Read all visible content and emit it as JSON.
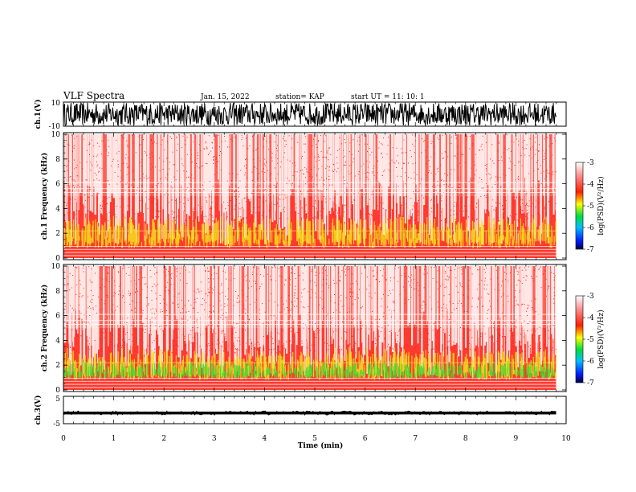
{
  "header": {
    "title": "VLF Spectra",
    "date": "Jan. 15, 2022",
    "station": "station= KAP",
    "start": "start  UT  =   11: 10: 1"
  },
  "chart_data": [
    {
      "type": "line",
      "panel": "ch1-waveform",
      "ylabel": "ch.1(V)",
      "ylim": [
        -10,
        10
      ],
      "ytick_labels": [
        "10",
        "-10"
      ],
      "xlim": [
        0,
        10
      ]
    },
    {
      "type": "heatmap",
      "panel": "ch1-spectrogram",
      "ylabel": "ch.1 Frequency (kHz)",
      "ylim": [
        0,
        10
      ],
      "xlim": [
        0,
        9.8
      ],
      "ytick_labels": [
        "10",
        "8",
        "6",
        "4",
        "2",
        "0"
      ],
      "colorbar": {
        "label": "log(PSD)(V²/Hz)",
        "range": [
          -7,
          -3
        ],
        "tick_labels": [
          "-3",
          "-4",
          "-5",
          "-6",
          "-7"
        ]
      }
    },
    {
      "type": "heatmap",
      "panel": "ch2-spectrogram",
      "ylabel": "ch.2 Frequency (kHz)",
      "ylim": [
        0,
        10
      ],
      "xlim": [
        0,
        9.8
      ],
      "ytick_labels": [
        "10",
        "8",
        "6",
        "4",
        "2",
        "0"
      ],
      "colorbar": {
        "label": "log(PSD)(V²/Hz)",
        "range": [
          -7,
          -3
        ],
        "tick_labels": [
          "-3",
          "-4",
          "-5",
          "-6",
          "-7"
        ]
      }
    },
    {
      "type": "line",
      "panel": "ch3-waveform",
      "ylabel": "ch.3(V)",
      "ylim": [
        -5,
        5
      ],
      "ytick_labels": [
        "5",
        "-5"
      ],
      "xlim": [
        0,
        10
      ],
      "xlabel": "Time (min)",
      "xtick_labels": [
        "0",
        "1",
        "2",
        "3",
        "4",
        "5",
        "6",
        "7",
        "8",
        "9",
        "10"
      ]
    }
  ],
  "colors": {
    "background": "#ffffff",
    "axis": "#000000",
    "spectral_base": "#ff2a1f",
    "band_yellow": "#f0e020",
    "band_green": "#33dd33"
  }
}
